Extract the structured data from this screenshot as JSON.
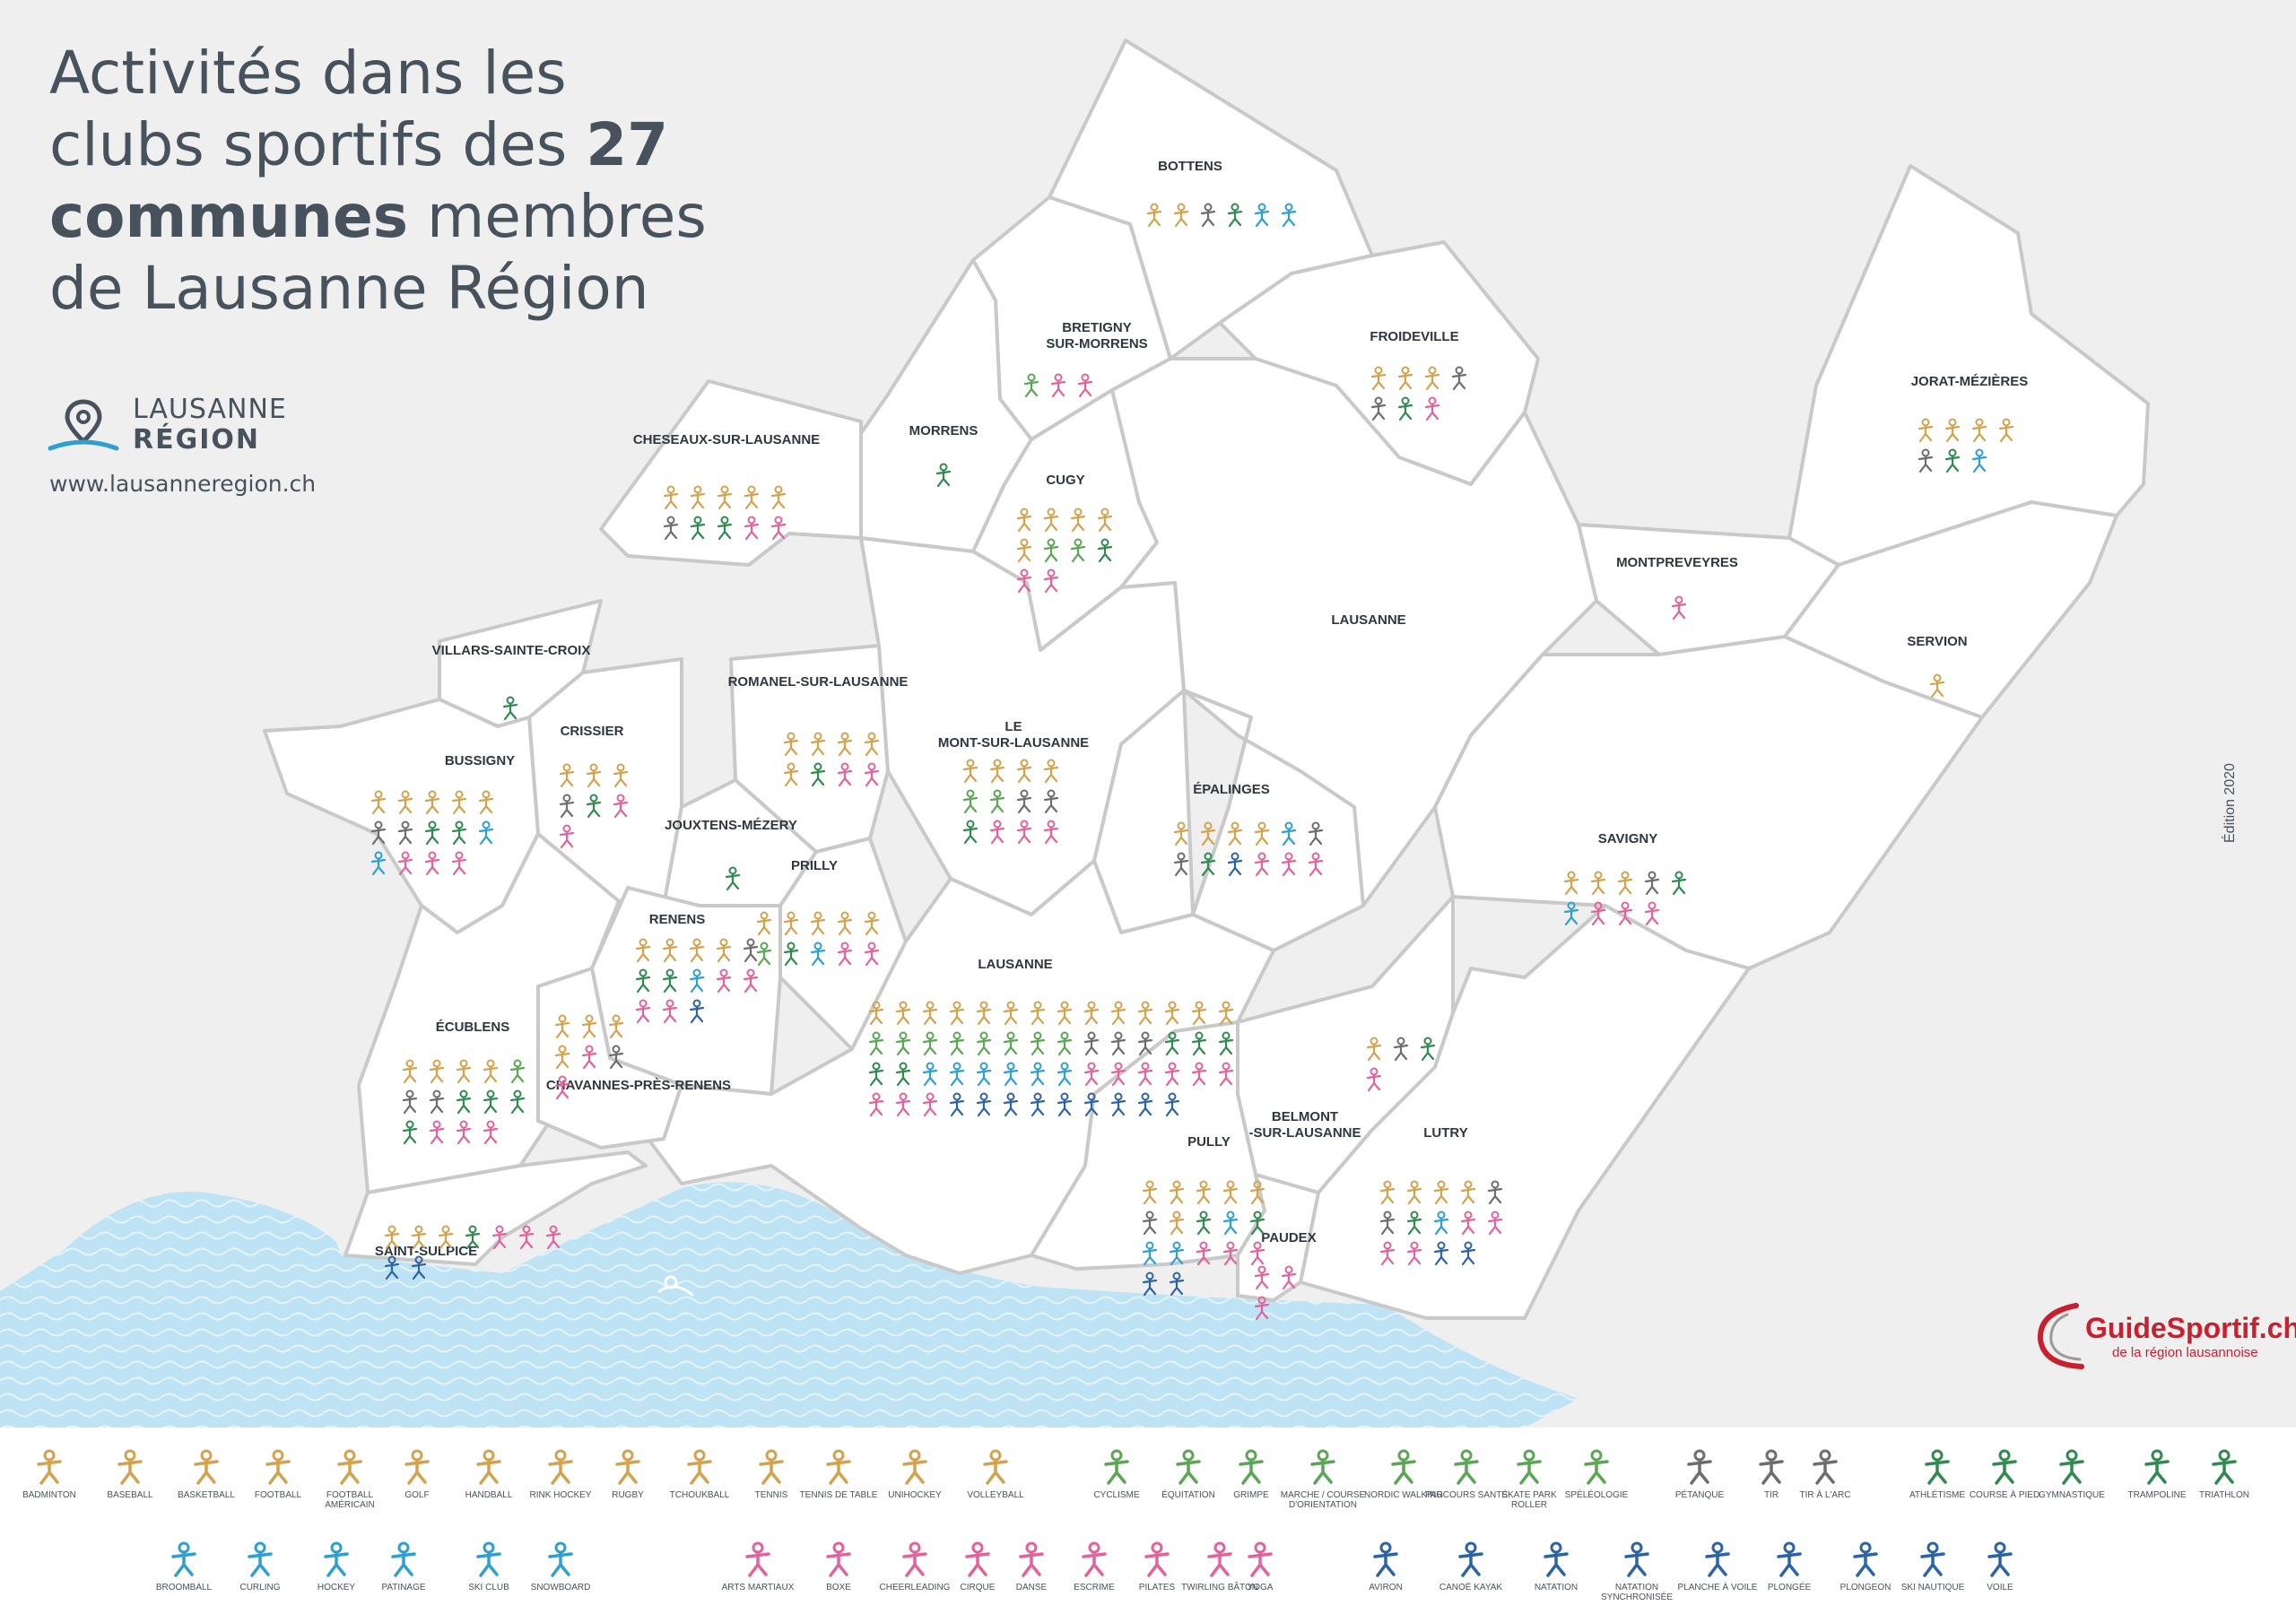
{
  "title": {
    "line1": "Activités dans les",
    "line2_pre": "clubs sportifs des ",
    "line2_bold": "27",
    "line3_bold": "communes",
    "line3_post": " membres",
    "line4": "de Lausanne Région"
  },
  "brand": {
    "line1": "LAUSANNE",
    "line2": "RÉGION"
  },
  "url": "www.lausanneregion.ch",
  "edition": "Édition 2020",
  "guidesportif": {
    "name": "GuideSportif.ch",
    "tagline": "de la région lausannoise"
  },
  "colors": {
    "ball_sports": "#d4a24c",
    "outdoor": "#5aa654",
    "precision": "#6d6d6d",
    "athletics": "#2f8a4f",
    "winter": "#2d9fd1",
    "expression": "#e2629c",
    "water": "#2c63a6",
    "lake": "#bde3f5",
    "commune_fill": "#ffffff",
    "commune_border": "#c9c9c9",
    "guidesportif_red": "#c8202f"
  },
  "map": {
    "communes": [
      {
        "name": "BOTTENS",
        "activities": [
          "badminton",
          "basketball",
          "petanque",
          "athletisme",
          "ski club",
          "snowboard"
        ]
      },
      {
        "name": "BRETIGNY SUR-MORRENS",
        "activities": [
          "equitation",
          "arts martiaux",
          "danse"
        ]
      },
      {
        "name": "FROIDEVILLE",
        "activities": [
          "badminton",
          "handball",
          "rugby",
          "petanque",
          "tir",
          "gymnastique",
          "arts martiaux"
        ]
      },
      {
        "name": "JORAT-MÉZIÈRES",
        "activities": [
          "badminton",
          "football",
          "rugby",
          "volleyball",
          "tir",
          "gymnastique",
          "ski club"
        ]
      },
      {
        "name": "MORRENS",
        "activities": [
          "gymnastique"
        ]
      },
      {
        "name": "CUGY",
        "activities": [
          "badminton",
          "handball",
          "rugby",
          "volleyball",
          "football",
          "equitation",
          "grimpe",
          "athletisme",
          "danse",
          "pilates"
        ]
      },
      {
        "name": "CHESEAUX-SUR-LAUSANNE",
        "activities": [
          "badminton",
          "football",
          "handball",
          "volleyball",
          "basketball",
          "petanque",
          "athletisme",
          "gymnastique",
          "arts martiaux",
          "danse"
        ]
      },
      {
        "name": "MONTPREVEYRES",
        "activities": [
          "cheerleading"
        ]
      },
      {
        "name": "LAUSANNE",
        "activities": []
      },
      {
        "name": "SERVION",
        "activities": [
          "football"
        ]
      },
      {
        "name": "VILLARS-SAINTE-CROIX",
        "activities": [
          "gymnastique"
        ]
      },
      {
        "name": "ROMANEL-SUR-LAUSANNE",
        "activities": [
          "badminton",
          "football",
          "rugby",
          "volleyball",
          "basketball",
          "gymnastique",
          "arts martiaux",
          "escrime"
        ]
      },
      {
        "name": "LE MONT-SUR-LAUSANNE",
        "activities": [
          "badminton",
          "football",
          "handball",
          "volleyball",
          "cyclisme",
          "equitation",
          "petanque",
          "tir",
          "gymnastique",
          "danse",
          "pilates",
          "yoga"
        ]
      },
      {
        "name": "CRISSIER",
        "activities": [
          "badminton",
          "handball",
          "rugby",
          "petanque",
          "gymnastique",
          "danse",
          "pilates"
        ]
      },
      {
        "name": "BUSSIGNY",
        "activities": [
          "badminton",
          "football",
          "tennis",
          "handball",
          "volleyball",
          "petanque",
          "tir",
          "athletisme",
          "gymnastique",
          "broomball",
          "curling",
          "arts martiaux",
          "danse",
          "cheerleading"
        ]
      },
      {
        "name": "ÉPALINGES",
        "activities": [
          "badminton",
          "football",
          "handball",
          "rugby",
          "hockey",
          "petanque",
          "tir",
          "athletisme",
          "aviron",
          "arts martiaux",
          "pilates",
          "yoga"
        ]
      },
      {
        "name": "SAVIGNY",
        "activities": [
          "badminton",
          "football",
          "handball",
          "petanque",
          "gymnastique",
          "broomball",
          "danse",
          "arts martiaux",
          "yoga"
        ]
      },
      {
        "name": "JOUXTENS-MÉZERY",
        "activities": [
          "gymnastique"
        ]
      },
      {
        "name": "PRILLY",
        "activities": [
          "badminton",
          "basketball",
          "football",
          "handball",
          "volleyball",
          "equitation",
          "gymnastique",
          "hockey",
          "arts martiaux",
          "danse"
        ]
      },
      {
        "name": "RENENS",
        "activities": [
          "badminton",
          "football",
          "handball",
          "rugby",
          "petanque",
          "gymnastique",
          "athletisme",
          "hockey",
          "arts martiaux",
          "danse",
          "cheerleading",
          "pilates",
          "natation"
        ]
      },
      {
        "name": "LAUSANNE",
        "activities": [
          "badminton",
          "baseball",
          "basketball",
          "football",
          "football americain",
          "golf",
          "handball",
          "rink hockey",
          "rugby",
          "tchoukball",
          "tennis",
          "tennis de table",
          "unihockey",
          "volleyball",
          "cyclisme",
          "equitation",
          "grimpe",
          "marche",
          "nordic walking",
          "parcours sante",
          "skate park",
          "speleologie",
          "petanque",
          "tir",
          "tir a l'arc",
          "athletisme",
          "course a pied",
          "gymnastique",
          "trampoline",
          "triathlon",
          "broomball",
          "curling",
          "hockey",
          "patinage",
          "ski club",
          "snowboard",
          "arts martiaux",
          "boxe",
          "cheerleading",
          "cirque",
          "danse",
          "escrime",
          "pilates",
          "twirling baton",
          "yoga",
          "aviron",
          "canoe kayak",
          "natation",
          "natation synchronisee",
          "planche a voile",
          "plongee",
          "plongeon",
          "ski nautique",
          "voile"
        ]
      },
      {
        "name": "ÉCUBLENS",
        "activities": [
          "badminton",
          "football",
          "handball",
          "volleyball",
          "equitation",
          "petanque",
          "tir",
          "athletisme",
          "gymnastique",
          "trampoline",
          "triathlon",
          "danse",
          "cheerleading",
          "pilates"
        ]
      },
      {
        "name": "CHAVANNES-PRÈS-RENENS",
        "activities": [
          "badminton",
          "football",
          "handball",
          "basketball",
          "arts martiaux",
          "petanque",
          "danse"
        ]
      },
      {
        "name": "BELMONT -SUR-LAUSANNE",
        "activities": [
          "badminton",
          "tir",
          "gymnastique",
          "arts martiaux"
        ]
      },
      {
        "name": "LUTRY",
        "activities": [
          "badminton",
          "football",
          "handball",
          "volleyball",
          "petanque",
          "tir",
          "athletisme",
          "broomball",
          "arts martiaux",
          "danse",
          "cheerleading",
          "yoga",
          "planche a voile",
          "natation"
        ]
      },
      {
        "name": "PULLY",
        "activities": [
          "badminton",
          "football",
          "handball",
          "volleyball",
          "rugby",
          "petanque",
          "tennis",
          "athletisme",
          "curling",
          "triathlon",
          "ski club",
          "snowboard",
          "arts martiaux",
          "danse",
          "cheerleading",
          "aviron",
          "voile"
        ]
      },
      {
        "name": "PAUDEX",
        "activities": [
          "danse",
          "cheerleading",
          "yoga"
        ]
      },
      {
        "name": "SAINT-SULPICE",
        "activities": [
          "badminton",
          "football",
          "handball",
          "athletisme",
          "arts martiaux",
          "danse",
          "cheerleading",
          "voile",
          "aviron"
        ]
      }
    ]
  },
  "legend": [
    {
      "label": "BADMINTON",
      "color": "#d4a24c",
      "icon": "badminton-icon"
    },
    {
      "label": "BASEBALL",
      "color": "#d4a24c",
      "icon": "baseball-icon"
    },
    {
      "label": "BASKETBALL",
      "color": "#d4a24c",
      "icon": "basketball-icon"
    },
    {
      "label": "FOOTBALL",
      "color": "#d4a24c",
      "icon": "football-icon"
    },
    {
      "label": "FOOTBALL AMÉRICAIN",
      "color": "#d4a24c",
      "icon": "american-football-icon"
    },
    {
      "label": "GOLF",
      "color": "#d4a24c",
      "icon": "golf-icon"
    },
    {
      "label": "HANDBALL",
      "color": "#d4a24c",
      "icon": "handball-icon"
    },
    {
      "label": "RINK HOCKEY",
      "color": "#d4a24c",
      "icon": "rink-hockey-icon"
    },
    {
      "label": "RUGBY",
      "color": "#d4a24c",
      "icon": "rugby-icon"
    },
    {
      "label": "TCHOUKBALL",
      "color": "#d4a24c",
      "icon": "tchoukball-icon"
    },
    {
      "label": "TENNIS",
      "color": "#d4a24c",
      "icon": "tennis-icon"
    },
    {
      "label": "TENNIS DE TABLE",
      "color": "#d4a24c",
      "icon": "table-tennis-icon"
    },
    {
      "label": "UNIHOCKEY",
      "color": "#d4a24c",
      "icon": "unihockey-icon"
    },
    {
      "label": "VOLLEYBALL",
      "color": "#d4a24c",
      "icon": "volleyball-icon"
    },
    {
      "label": "CYCLISME",
      "color": "#5aa654",
      "icon": "cycling-icon"
    },
    {
      "label": "ÉQUITATION",
      "color": "#5aa654",
      "icon": "horse-riding-icon"
    },
    {
      "label": "GRIMPE",
      "color": "#5aa654",
      "icon": "climbing-icon"
    },
    {
      "label": "MARCHE / COURSE D'ORIENTATION",
      "color": "#5aa654",
      "icon": "orienteering-icon"
    },
    {
      "label": "NORDIC WALKING",
      "color": "#5aa654",
      "icon": "nordic-walking-icon"
    },
    {
      "label": "PARCOURS SANTÉ",
      "color": "#5aa654",
      "icon": "fitness-trail-icon"
    },
    {
      "label": "SKATE PARK ROLLER",
      "color": "#5aa654",
      "icon": "skate-icon"
    },
    {
      "label": "SPÉLÉOLOGIE",
      "color": "#5aa654",
      "icon": "caving-icon"
    },
    {
      "label": "PÉTANQUE",
      "color": "#6d6d6d",
      "icon": "petanque-icon"
    },
    {
      "label": "TIR",
      "color": "#6d6d6d",
      "icon": "shooting-icon"
    },
    {
      "label": "TIR À L'ARC",
      "color": "#6d6d6d",
      "icon": "archery-icon"
    },
    {
      "label": "ATHLÉTISME",
      "color": "#2f8a4f",
      "icon": "athletics-icon"
    },
    {
      "label": "COURSE À PIED",
      "color": "#2f8a4f",
      "icon": "running-icon"
    },
    {
      "label": "GYMNASTIQUE",
      "color": "#2f8a4f",
      "icon": "gymnastics-icon"
    },
    {
      "label": "TRAMPOLINE",
      "color": "#2f8a4f",
      "icon": "trampoline-icon"
    },
    {
      "label": "TRIATHLON",
      "color": "#2f8a4f",
      "icon": "triathlon-icon"
    },
    {
      "label": "BROOMBALL",
      "color": "#2d9fd1",
      "icon": "broomball-icon"
    },
    {
      "label": "CURLING",
      "color": "#2d9fd1",
      "icon": "curling-icon"
    },
    {
      "label": "HOCKEY",
      "color": "#2d9fd1",
      "icon": "hockey-icon"
    },
    {
      "label": "PATINAGE",
      "color": "#2d9fd1",
      "icon": "skating-icon"
    },
    {
      "label": "SKI CLUB",
      "color": "#2d9fd1",
      "icon": "ski-icon"
    },
    {
      "label": "SNOWBOARD",
      "color": "#2d9fd1",
      "icon": "snowboard-icon"
    },
    {
      "label": "ARTS MARTIAUX",
      "color": "#e2629c",
      "icon": "martial-arts-icon"
    },
    {
      "label": "BOXE",
      "color": "#e2629c",
      "icon": "boxing-icon"
    },
    {
      "label": "CHEERLEADING",
      "color": "#e2629c",
      "icon": "cheerleading-icon"
    },
    {
      "label": "CIRQUE",
      "color": "#e2629c",
      "icon": "circus-icon"
    },
    {
      "label": "DANSE",
      "color": "#e2629c",
      "icon": "dance-icon"
    },
    {
      "label": "ESCRIME",
      "color": "#e2629c",
      "icon": "fencing-icon"
    },
    {
      "label": "PILATES",
      "color": "#e2629c",
      "icon": "pilates-icon"
    },
    {
      "label": "TWIRLING BÂTON",
      "color": "#e2629c",
      "icon": "twirling-icon"
    },
    {
      "label": "YOGA",
      "color": "#e2629c",
      "icon": "yoga-icon"
    },
    {
      "label": "AVIRON",
      "color": "#2c63a6",
      "icon": "rowing-icon"
    },
    {
      "label": "CANOË KAYAK",
      "color": "#2c63a6",
      "icon": "kayak-icon"
    },
    {
      "label": "NATATION",
      "color": "#2c63a6",
      "icon": "swimming-icon"
    },
    {
      "label": "NATATION SYNCHRONISÉE",
      "color": "#2c63a6",
      "icon": "synchro-swimming-icon"
    },
    {
      "label": "PLANCHE À VOILE",
      "color": "#2c63a6",
      "icon": "windsurf-icon"
    },
    {
      "label": "PLONGÉE",
      "color": "#2c63a6",
      "icon": "scuba-icon"
    },
    {
      "label": "PLONGEON",
      "color": "#2c63a6",
      "icon": "diving-icon"
    },
    {
      "label": "SKI NAUTIQUE",
      "color": "#2c63a6",
      "icon": "water-ski-icon"
    },
    {
      "label": "VOILE",
      "color": "#2c63a6",
      "icon": "sailing-icon"
    }
  ]
}
